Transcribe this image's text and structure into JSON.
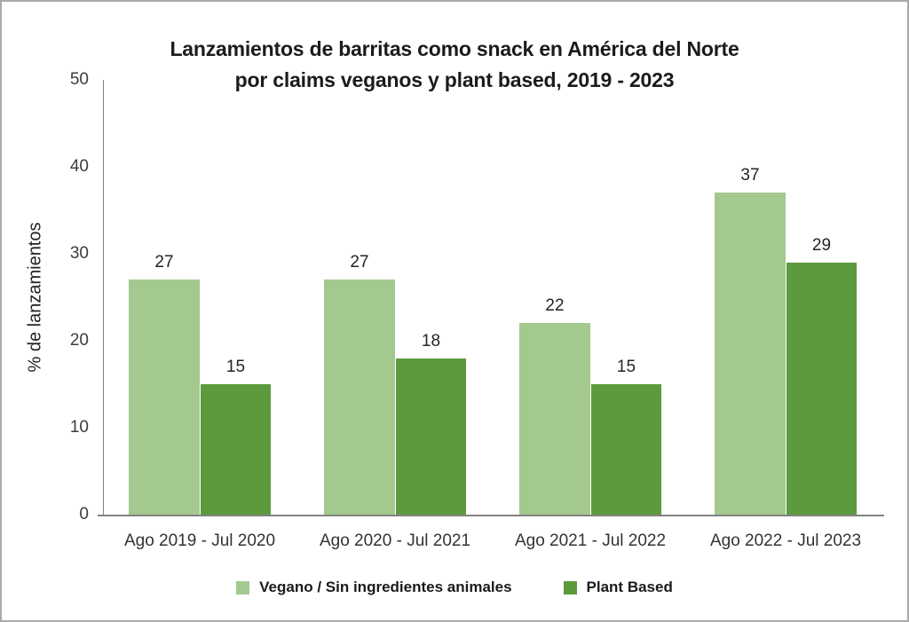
{
  "chart_data": {
    "type": "bar",
    "title_lines": [
      "Lanzamientos de barritas como snack en América del Norte",
      "por claims veganos y plant based, 2019 - 2023"
    ],
    "ylabel": "% de lanzamientos",
    "xlabel": "",
    "categories": [
      "Ago 2019 - Jul 2020",
      "Ago 2020 - Jul 2021",
      "Ago 2021 - Jul 2022",
      "Ago 2022 - Jul 2023"
    ],
    "series": [
      {
        "name": "Vegano / Sin ingredientes animales",
        "color": "#a3c98f",
        "values": [
          27,
          27,
          22,
          37
        ]
      },
      {
        "name": "Plant Based",
        "color": "#5d9a3e",
        "values": [
          15,
          18,
          15,
          29
        ]
      }
    ],
    "ylim": [
      0,
      50
    ],
    "yticks": [
      0,
      10,
      20,
      30,
      40,
      50
    ],
    "grid": false,
    "legend_position": "bottom",
    "bar_value_labels": true
  },
  "colors": {
    "background": "#ffffff",
    "frame_border": "#a9a9a9",
    "axis": "#828282",
    "title_text": "#1b1b1b",
    "tick_text": "#3c3c3c",
    "value_text": "#242424",
    "legend_text": "#1b1b1b"
  }
}
